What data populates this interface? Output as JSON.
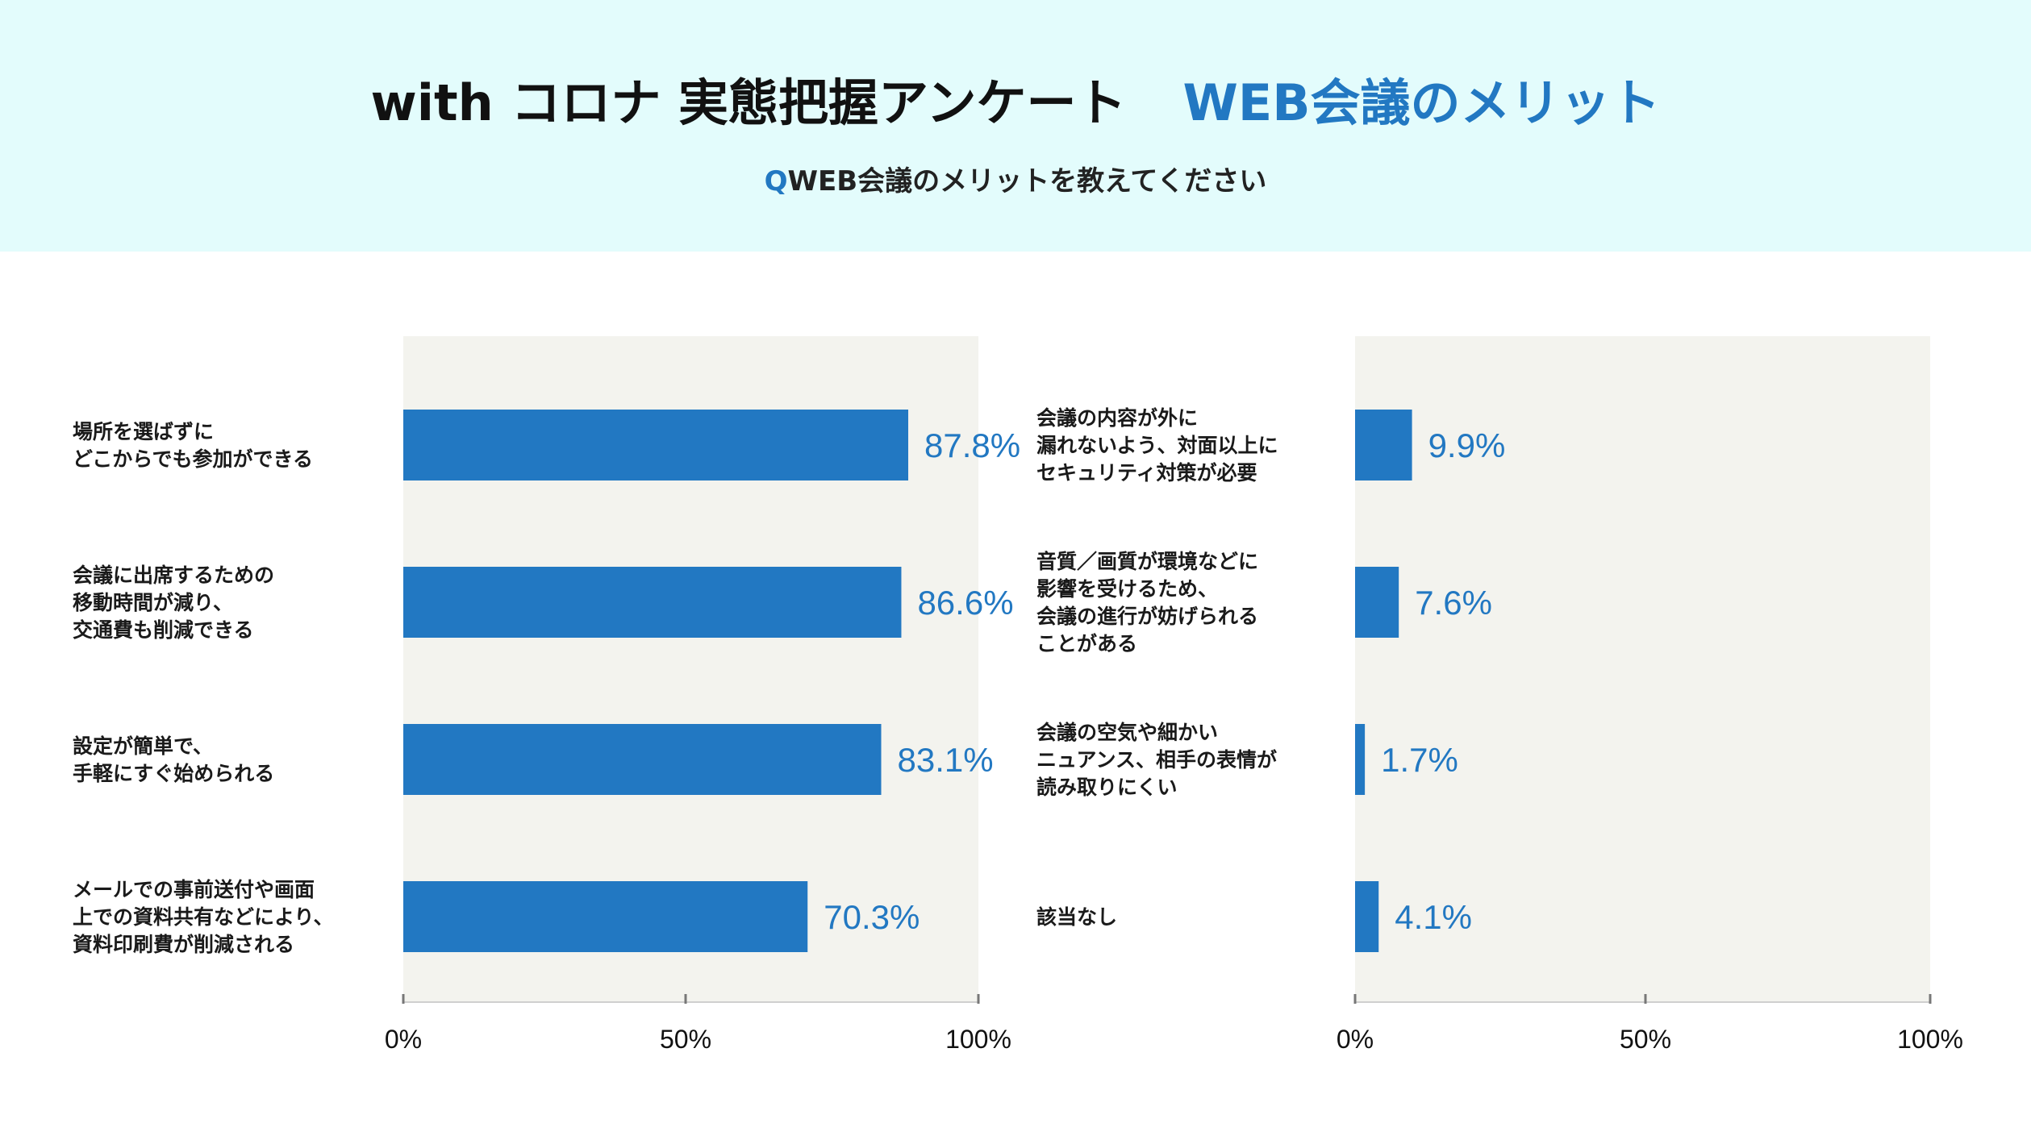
{
  "header": {
    "title": "with コロナ 実態把握アンケート",
    "title_accent": "WEB会議のメリット",
    "question_mark": "Q",
    "question": "WEB会議のメリットを教えてください"
  },
  "colors": {
    "header_background": "#e3fcfc",
    "plot_background": "#f3f3ee",
    "bar": "#2278c2",
    "value_text": "#2278c2"
  },
  "chart_data": [
    {
      "type": "bar",
      "orientation": "horizontal",
      "categories": [
        [
          "場所を選ばずに",
          "どこからでも参加ができる"
        ],
        [
          "会議に出席するための",
          "移動時間が減り、",
          "交通費も削減できる"
        ],
        [
          "設定が簡単で、",
          "手軽にすぐ始められる"
        ],
        [
          "メールでの事前送付や画面",
          "上での資料共有などにより、",
          "資料印刷費が削減される"
        ]
      ],
      "values": [
        87.8,
        86.6,
        83.1,
        70.3
      ],
      "value_labels": [
        "87.8%",
        "86.6%",
        "83.1%",
        "70.3%"
      ],
      "xlim": [
        0,
        100
      ],
      "x_ticks": [
        "0%",
        "50%",
        "100%"
      ],
      "grid": false
    },
    {
      "type": "bar",
      "orientation": "horizontal",
      "categories": [
        [
          "会議の内容が外に",
          "漏れないよう、対面以上に",
          "セキュリティ対策が必要"
        ],
        [
          "音質／画質が環境などに",
          "影響を受けるため、",
          "会議の進行が妨げられる",
          "ことがある"
        ],
        [
          "会議の空気や細かい",
          "ニュアンス、相手の表情が",
          "読み取りにくい"
        ],
        [
          "該当なし"
        ]
      ],
      "values": [
        9.9,
        7.6,
        1.7,
        4.1
      ],
      "value_labels": [
        "9.9%",
        "7.6%",
        "1.7%",
        "4.1%"
      ],
      "xlim": [
        0,
        100
      ],
      "x_ticks": [
        "0%",
        "50%",
        "100%"
      ],
      "grid": false
    }
  ]
}
